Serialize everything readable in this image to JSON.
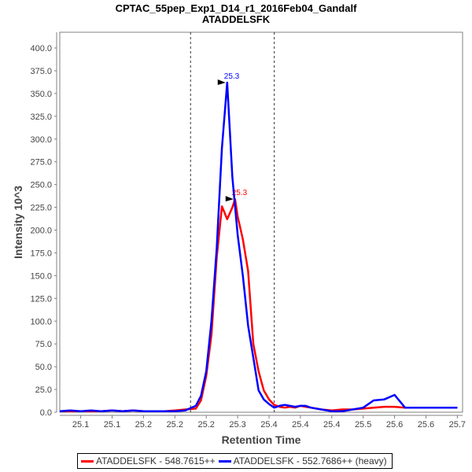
{
  "chart_data": {
    "type": "line",
    "title": "CPTAC_55pep_Exp1_D14_r1_2016Feb04_Gandalf",
    "subtitle": "ATADDELSFK",
    "xlabel": "Retention Time",
    "ylabel": "Intensity 10^3",
    "xlim": [
      25.02,
      25.79
    ],
    "ylim": [
      0,
      410
    ],
    "grid": false,
    "legend_position": "bottom",
    "y_ticks": [
      "0.0",
      "25.0",
      "50.0",
      "75.0",
      "100.0",
      "125.0",
      "150.0",
      "175.0",
      "200.0",
      "225.0",
      "250.0",
      "275.0",
      "300.0",
      "325.0",
      "350.0",
      "375.0",
      "400.0"
    ],
    "x_tick_labels": [
      "25.1",
      "25.1",
      "25.2",
      "25.2",
      "25.2",
      "25.3",
      "25.4",
      "25.4",
      "25.4",
      "25.5",
      "25.6",
      "25.6",
      "25.7"
    ],
    "x_tick_values": [
      25.06,
      25.12,
      25.18,
      25.24,
      25.3,
      25.36,
      25.42,
      25.48,
      25.54,
      25.6,
      25.66,
      25.72,
      25.78
    ],
    "boundary_lines": [
      25.27,
      25.43
    ],
    "series": [
      {
        "name": "ATADDELSFK - 548.7615++",
        "color": "#ff0000",
        "peak_label": "25.3",
        "x": [
          25.02,
          25.04,
          25.06,
          25.08,
          25.1,
          25.12,
          25.14,
          25.16,
          25.18,
          25.2,
          25.22,
          25.24,
          25.26,
          25.28,
          25.29,
          25.3,
          25.31,
          25.32,
          25.33,
          25.335,
          25.34,
          25.35,
          25.355,
          25.36,
          25.37,
          25.38,
          25.39,
          25.4,
          25.41,
          25.42,
          25.43,
          25.44,
          25.45,
          25.46,
          25.47,
          25.48,
          25.49,
          25.5,
          25.52,
          25.54,
          25.56,
          25.58,
          25.6,
          25.62,
          25.64,
          25.66,
          25.68,
          25.7,
          25.72,
          25.74,
          25.76,
          25.78
        ],
        "values": [
          1,
          1,
          1,
          1,
          1,
          2,
          1,
          2,
          1,
          1,
          1,
          2,
          3,
          4,
          13,
          40,
          85,
          170,
          226,
          219,
          212,
          225,
          234,
          215,
          190,
          155,
          75,
          45,
          24,
          14,
          8,
          6,
          5,
          6,
          5,
          7,
          6,
          5,
          3,
          2,
          3,
          3,
          4,
          5,
          6,
          6,
          5,
          5,
          5,
          5,
          5,
          5
        ]
      },
      {
        "name": "ATADDELSFK - 552.7686++ (heavy)",
        "color": "#0000ff",
        "peak_label": "25.3",
        "x": [
          25.02,
          25.04,
          25.06,
          25.08,
          25.1,
          25.12,
          25.14,
          25.16,
          25.18,
          25.2,
          25.22,
          25.24,
          25.26,
          25.28,
          25.29,
          25.3,
          25.31,
          25.32,
          25.33,
          25.34,
          25.35,
          25.36,
          25.37,
          25.38,
          25.39,
          25.4,
          25.41,
          25.42,
          25.43,
          25.44,
          25.45,
          25.46,
          25.47,
          25.48,
          25.49,
          25.5,
          25.52,
          25.54,
          25.56,
          25.58,
          25.6,
          25.62,
          25.64,
          25.66,
          25.68,
          25.7,
          25.72,
          25.74,
          25.76,
          25.78
        ],
        "values": [
          1,
          2,
          1,
          2,
          1,
          2,
          1,
          2,
          1,
          1,
          1,
          1,
          2,
          7,
          18,
          45,
          100,
          180,
          290,
          362,
          258,
          195,
          150,
          95,
          60,
          24,
          14,
          9,
          5,
          7,
          8,
          7,
          6,
          7,
          7,
          5,
          3,
          1,
          1,
          3,
          5,
          13,
          14,
          19,
          5,
          5,
          5,
          5,
          5,
          5
        ]
      }
    ]
  },
  "legend": {
    "items": [
      {
        "label": "ATADDELSFK - 548.7615++",
        "color": "#ff0000"
      },
      {
        "label": "ATADDELSFK - 552.7686++ (heavy)",
        "color": "#0000ff"
      }
    ]
  }
}
